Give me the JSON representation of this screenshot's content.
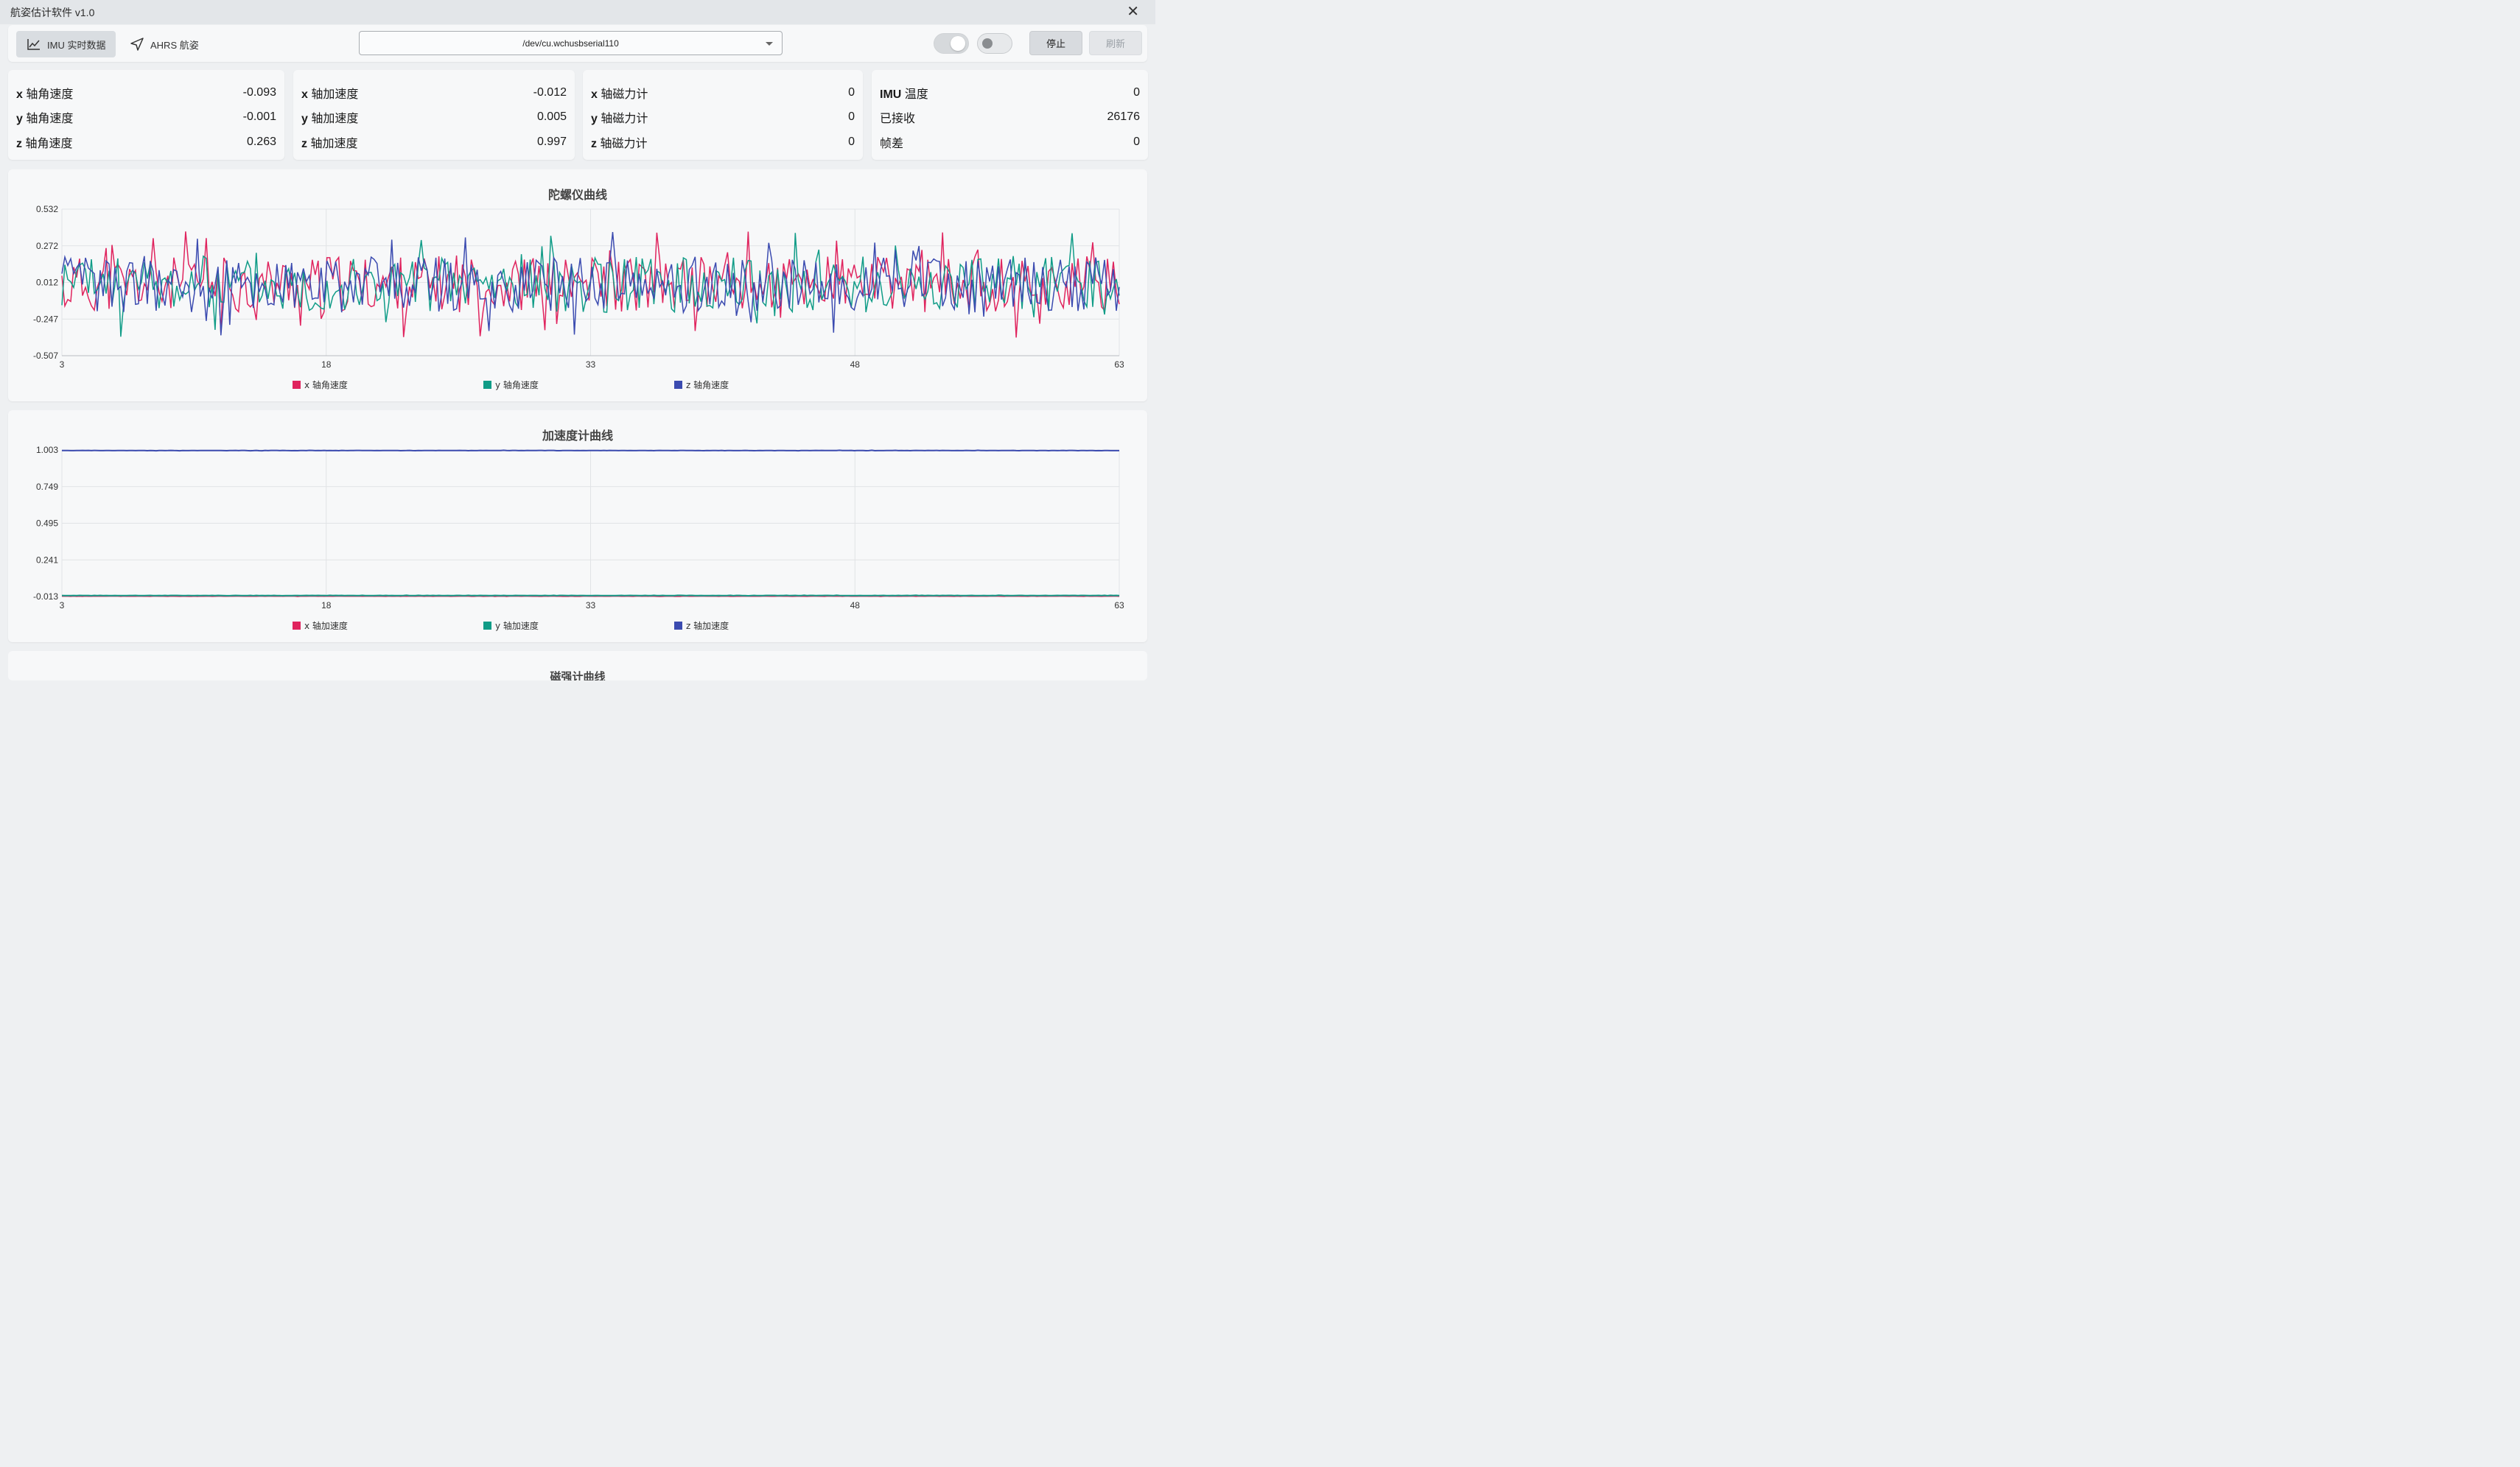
{
  "window": {
    "title": "航姿估计软件 v1.0"
  },
  "toolbar": {
    "tab_imu": "IMU 实时数据",
    "tab_ahrs": "AHRS 航姿",
    "port": "/dev/cu.wchusbserial110",
    "toggle1_on": true,
    "toggle2_on": false,
    "stop_label": "停止",
    "refresh_label": "刷新"
  },
  "cards": [
    {
      "rows": [
        {
          "axis": "x",
          "label": "轴角速度",
          "value": "-0.093"
        },
        {
          "axis": "y",
          "label": "轴角速度",
          "value": "-0.001"
        },
        {
          "axis": "z",
          "label": "轴角速度",
          "value": "0.263"
        }
      ]
    },
    {
      "rows": [
        {
          "axis": "x",
          "label": "轴加速度",
          "value": "-0.012"
        },
        {
          "axis": "y",
          "label": "轴加速度",
          "value": "0.005"
        },
        {
          "axis": "z",
          "label": "轴加速度",
          "value": "0.997"
        }
      ]
    },
    {
      "rows": [
        {
          "axis": "x",
          "label": "轴磁力计",
          "value": "0"
        },
        {
          "axis": "y",
          "label": "轴磁力计",
          "value": "0"
        },
        {
          "axis": "z",
          "label": "轴磁力计",
          "value": "0"
        }
      ]
    },
    {
      "rows": [
        {
          "axis": "IMU",
          "label": "温度",
          "value": "0"
        },
        {
          "axis": "",
          "label": "已接收",
          "value": "26176"
        },
        {
          "axis": "",
          "label": "帧差",
          "value": "0"
        }
      ]
    }
  ],
  "chart_data": [
    {
      "type": "line",
      "title": "陀螺仪曲线",
      "xlim": [
        3,
        63
      ],
      "x_ticks": [
        "3",
        "18",
        "33",
        "48",
        "63"
      ],
      "ylim": [
        -0.507,
        0.532
      ],
      "y_ticks": [
        "0.532",
        "0.272",
        "0.012",
        "-0.247",
        "-0.507"
      ],
      "grid": true,
      "legend_position": "bottom",
      "series": [
        {
          "name": "x 轴角速度",
          "color": "#e0245e",
          "seed": 11,
          "center": 0.0,
          "amp": 0.2
        },
        {
          "name": "y 轴角速度",
          "color": "#109c87",
          "seed": 23,
          "center": 0.0,
          "amp": 0.2
        },
        {
          "name": "z 轴角速度",
          "color": "#3b4bb0",
          "seed": 37,
          "center": 0.0,
          "amp": 0.2
        }
      ]
    },
    {
      "type": "line",
      "title": "加速度计曲线",
      "xlim": [
        3,
        63
      ],
      "x_ticks": [
        "3",
        "18",
        "33",
        "48",
        "63"
      ],
      "ylim": [
        -0.013,
        1.003
      ],
      "y_ticks": [
        "1.003",
        "0.749",
        "0.495",
        "0.241",
        "-0.013"
      ],
      "grid": true,
      "legend_position": "bottom",
      "series": [
        {
          "name": "x 轴加速度",
          "color": "#e0245e",
          "seed": 5,
          "center": -0.01,
          "amp": 0.001
        },
        {
          "name": "y 轴加速度",
          "color": "#109c87",
          "seed": 7,
          "center": -0.006,
          "amp": 0.001
        },
        {
          "name": "z 轴加速度",
          "color": "#3b4bb0",
          "seed": 9,
          "center": 0.999,
          "amp": 0.001
        }
      ]
    }
  ],
  "third_panel_title": "磁强计曲线"
}
